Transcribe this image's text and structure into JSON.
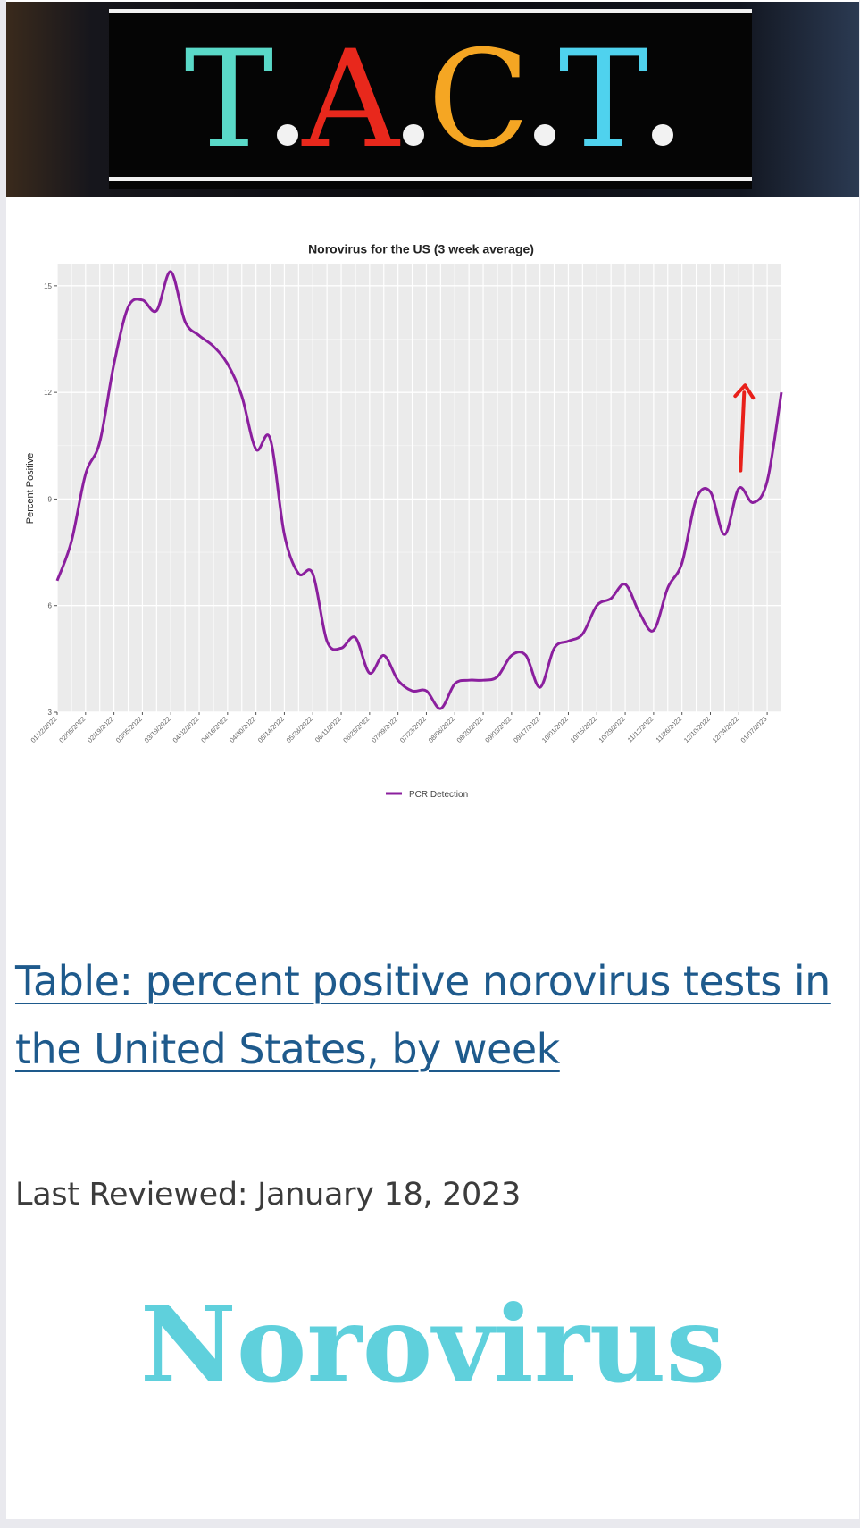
{
  "banner": {
    "letters": [
      {
        "char": "T",
        "color": "#5ad9c8"
      },
      {
        "char": "A",
        "color": "#e8281c"
      },
      {
        "char": "C",
        "color": "#f5a623"
      },
      {
        "char": "T",
        "color": "#4fd2ee"
      }
    ],
    "dot_color": "#f2f2f2"
  },
  "chart_data": {
    "type": "line",
    "title": "Norovirus for the US (3 week average)",
    "xlabel": "",
    "ylabel": "Percent Positive",
    "ylim": [
      3,
      15.6
    ],
    "yticks": [
      3,
      6,
      9,
      12,
      15
    ],
    "x_tick_labels": [
      "01/22/2022",
      "02/05/2022",
      "02/19/2022",
      "03/05/2022",
      "03/19/2022",
      "04/02/2022",
      "04/16/2022",
      "04/30/2022",
      "05/14/2022",
      "05/28/2022",
      "06/11/2022",
      "06/25/2022",
      "07/09/2022",
      "07/23/2022",
      "08/06/2022",
      "08/20/2022",
      "09/03/2022",
      "09/17/2022",
      "10/01/2022",
      "10/15/2022",
      "10/29/2022",
      "11/12/2022",
      "11/26/2022",
      "12/10/2022",
      "12/24/2022",
      "01/07/2023"
    ],
    "grid": true,
    "legend_position": "bottom",
    "series": [
      {
        "name": "PCR Detection",
        "color": "#8b1f9e",
        "x": [
          "01/22/2022",
          "01/29/2022",
          "02/05/2022",
          "02/12/2022",
          "02/19/2022",
          "02/26/2022",
          "03/05/2022",
          "03/12/2022",
          "03/19/2022",
          "03/26/2022",
          "04/02/2022",
          "04/09/2022",
          "04/16/2022",
          "04/23/2022",
          "04/30/2022",
          "05/07/2022",
          "05/14/2022",
          "05/21/2022",
          "05/28/2022",
          "06/04/2022",
          "06/11/2022",
          "06/18/2022",
          "06/25/2022",
          "07/02/2022",
          "07/09/2022",
          "07/16/2022",
          "07/23/2022",
          "07/30/2022",
          "08/06/2022",
          "08/13/2022",
          "08/20/2022",
          "08/27/2022",
          "09/03/2022",
          "09/10/2022",
          "09/17/2022",
          "09/24/2022",
          "10/01/2022",
          "10/08/2022",
          "10/15/2022",
          "10/22/2022",
          "10/29/2022",
          "11/05/2022",
          "11/12/2022",
          "11/19/2022",
          "11/26/2022",
          "12/03/2022",
          "12/10/2022",
          "12/17/2022",
          "12/24/2022",
          "12/31/2022",
          "01/07/2023",
          "01/14/2023"
        ],
        "values": [
          6.7,
          7.8,
          9.7,
          10.6,
          12.8,
          14.4,
          14.6,
          14.3,
          15.4,
          14.0,
          13.6,
          13.3,
          12.8,
          11.9,
          10.4,
          10.7,
          8.0,
          6.9,
          6.9,
          5.0,
          4.8,
          5.1,
          4.1,
          4.6,
          3.9,
          3.6,
          3.6,
          3.1,
          3.8,
          3.9,
          3.9,
          4.0,
          4.6,
          4.6,
          3.7,
          4.8,
          5.0,
          5.2,
          6.0,
          6.2,
          6.6,
          5.8,
          5.3,
          6.5,
          7.2,
          9.0,
          9.2,
          8.0,
          9.3,
          8.9,
          9.5,
          12.0
        ]
      }
    ],
    "annotations": [
      {
        "type": "arrow",
        "direction": "up",
        "color": "#e8201a",
        "x": "12/24/2022"
      }
    ]
  },
  "link": {
    "text": "Table: percent positive norovirus tests in the United States, by week"
  },
  "reviewed": {
    "text": "Last Reviewed: January 18, 2023"
  },
  "headline": {
    "text": "Norovirus",
    "color": "#5fd0dc"
  }
}
